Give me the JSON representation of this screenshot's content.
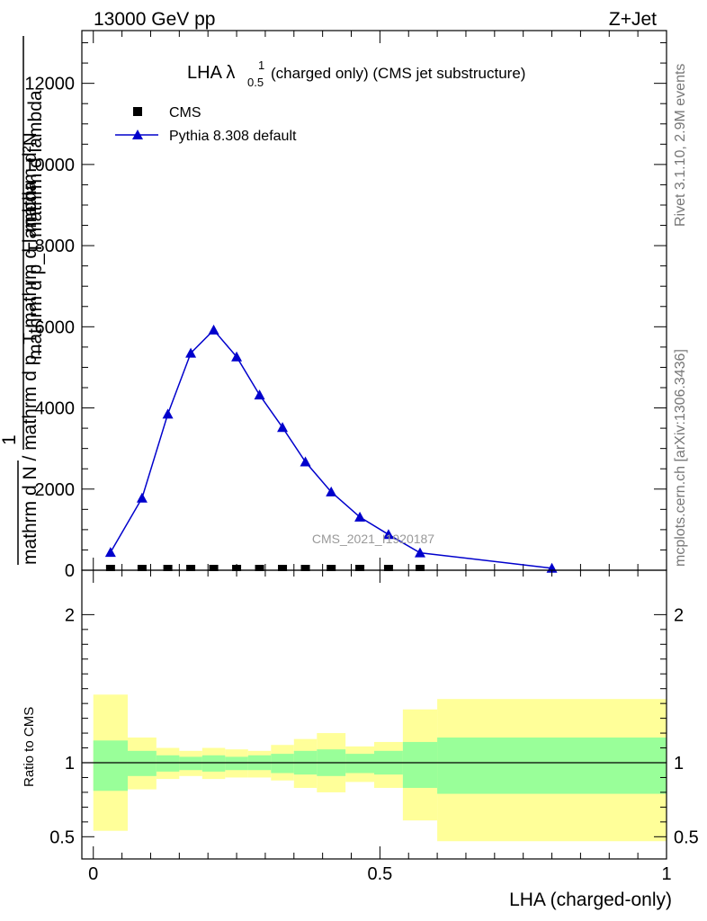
{
  "header": {
    "left": "13000 GeV pp",
    "right": "Z+Jet"
  },
  "title": {
    "main": "LHA λ",
    "sup": "1",
    "sub": "0.5",
    "rest": "(charged only) (CMS jet substructure)"
  },
  "side_labels": {
    "rivet": "Rivet 3.1.10,  2.9M events",
    "mcplots": "mcplots.cern.ch [arXiv:1306.3436]"
  },
  "watermark": "CMS_2021_I1920187",
  "yaxis": {
    "top_numerator": "mathrm d²N",
    "top_denominator": "mathrm d p_T mathrm d lambda",
    "top_numerator2": "1",
    "top_denominator2": "mathrm d N / mathrm d p_T mathrm d lambda",
    "sub_T": "T",
    "ratio_label": "Ratio to CMS"
  },
  "xaxis": {
    "label": "LHA (charged-only)"
  },
  "chart_data": [
    {
      "type": "line",
      "xlim": [
        -0.02,
        1.0
      ],
      "ylim": [
        0,
        13300
      ],
      "yticks": [
        0,
        2000,
        4000,
        6000,
        8000,
        10000,
        12000
      ],
      "ytick_labels": [
        "0",
        "2000",
        "4000",
        "6000",
        "8000",
        "10000",
        "12000"
      ],
      "legend_position": "top-left",
      "legend": [
        {
          "name": "CMS",
          "marker": "square",
          "color": "#000000"
        },
        {
          "name": "Pythia 8.308 default",
          "marker": "triangle",
          "color": "#0000cc"
        }
      ],
      "series": [
        {
          "name": "CMS",
          "x": [
            0.03,
            0.085,
            0.13,
            0.17,
            0.21,
            0.25,
            0.29,
            0.33,
            0.37,
            0.415,
            0.465,
            0.515,
            0.57
          ],
          "y": [
            0,
            0,
            0,
            0,
            0,
            0,
            0,
            0,
            0,
            0,
            0,
            0,
            0
          ]
        },
        {
          "name": "Pythia 8.308 default",
          "x": [
            0.03,
            0.085,
            0.13,
            0.17,
            0.21,
            0.25,
            0.29,
            0.33,
            0.37,
            0.415,
            0.465,
            0.515,
            0.57,
            0.8
          ],
          "y": [
            440,
            1780,
            3850,
            5350,
            5920,
            5260,
            4320,
            3520,
            2670,
            1930,
            1310,
            880,
            430,
            50
          ]
        }
      ]
    },
    {
      "type": "area",
      "xlim": [
        -0.02,
        1.0
      ],
      "ylim": [
        0.35,
        2.3
      ],
      "yticks": [
        0.5,
        1,
        2
      ],
      "ytick_labels": [
        "0.5",
        "1",
        "2"
      ],
      "xticks": [
        0,
        0.5,
        1
      ],
      "xtick_labels": [
        "0",
        "0.5",
        "1"
      ],
      "reference_line": 1,
      "bins": [
        {
          "x0": 0.0,
          "x1": 0.06,
          "inner": [
            0.81,
            1.15
          ],
          "outer": [
            0.54,
            1.46
          ]
        },
        {
          "x0": 0.06,
          "x1": 0.11,
          "inner": [
            0.91,
            1.08
          ],
          "outer": [
            0.82,
            1.17
          ]
        },
        {
          "x0": 0.11,
          "x1": 0.15,
          "inner": [
            0.94,
            1.05
          ],
          "outer": [
            0.89,
            1.1
          ]
        },
        {
          "x0": 0.15,
          "x1": 0.19,
          "inner": [
            0.95,
            1.04
          ],
          "outer": [
            0.91,
            1.08
          ]
        },
        {
          "x0": 0.19,
          "x1": 0.23,
          "inner": [
            0.94,
            1.05
          ],
          "outer": [
            0.89,
            1.1
          ]
        },
        {
          "x0": 0.23,
          "x1": 0.27,
          "inner": [
            0.95,
            1.04
          ],
          "outer": [
            0.9,
            1.09
          ]
        },
        {
          "x0": 0.27,
          "x1": 0.31,
          "inner": [
            0.95,
            1.05
          ],
          "outer": [
            0.9,
            1.08
          ]
        },
        {
          "x0": 0.31,
          "x1": 0.35,
          "inner": [
            0.93,
            1.06
          ],
          "outer": [
            0.88,
            1.12
          ]
        },
        {
          "x0": 0.35,
          "x1": 0.39,
          "inner": [
            0.92,
            1.08
          ],
          "outer": [
            0.83,
            1.16
          ]
        },
        {
          "x0": 0.39,
          "x1": 0.44,
          "inner": [
            0.91,
            1.09
          ],
          "outer": [
            0.8,
            1.2
          ]
        },
        {
          "x0": 0.44,
          "x1": 0.49,
          "inner": [
            0.93,
            1.06
          ],
          "outer": [
            0.87,
            1.11
          ]
        },
        {
          "x0": 0.49,
          "x1": 0.54,
          "inner": [
            0.92,
            1.08
          ],
          "outer": [
            0.83,
            1.14
          ]
        },
        {
          "x0": 0.54,
          "x1": 0.6,
          "inner": [
            0.83,
            1.14
          ],
          "outer": [
            0.61,
            1.36
          ]
        },
        {
          "x0": 0.6,
          "x1": 1.0,
          "inner": [
            0.79,
            1.17
          ],
          "outer": [
            0.47,
            1.43
          ]
        }
      ],
      "inner_color": "#99ff99",
      "outer_color": "#ffff99"
    }
  ]
}
